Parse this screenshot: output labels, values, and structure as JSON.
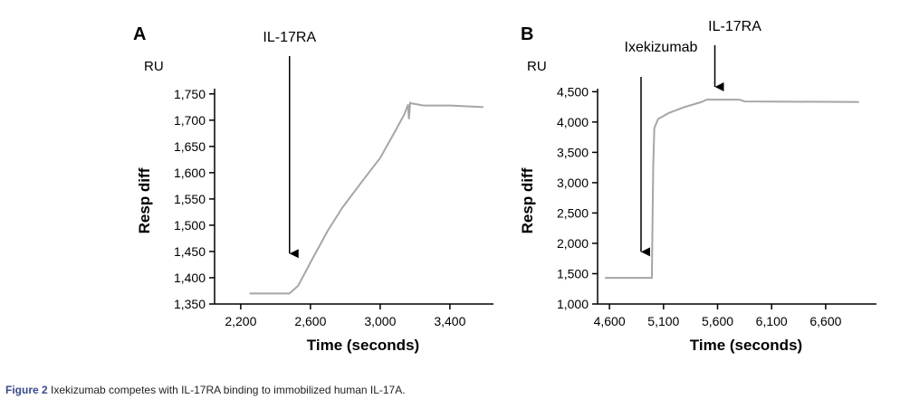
{
  "chart_data": [
    {
      "type": "line",
      "panel_label": "A",
      "y_unit": "RU",
      "ylabel": "Resp diff",
      "xlabel": "Time (seconds)",
      "x": [
        2250,
        2480,
        2530,
        2600,
        2700,
        2782,
        2900,
        3000,
        3086,
        3140,
        3160,
        3165,
        3172,
        3180,
        3250,
        3400,
        3592
      ],
      "values": [
        1370,
        1370,
        1385,
        1429,
        1490,
        1533,
        1585,
        1628,
        1679,
        1712,
        1730,
        1702,
        1733,
        1732,
        1728,
        1728,
        1725
      ],
      "color": "#a6a6a6",
      "xlim": [
        2050,
        3650
      ],
      "ylim": [
        1350,
        1760
      ],
      "xticks": [
        {
          "value": 2200,
          "label": "2,200"
        },
        {
          "value": 2600,
          "label": "2,600"
        },
        {
          "value": 3000,
          "label": "3,000"
        },
        {
          "value": 3400,
          "label": "3,400"
        }
      ],
      "yticks": [
        {
          "value": 1350,
          "label": "1,350"
        },
        {
          "value": 1400,
          "label": "1,400"
        },
        {
          "value": 1450,
          "label": "1,450"
        },
        {
          "value": 1500,
          "label": "1,500"
        },
        {
          "value": 1550,
          "label": "1,550"
        },
        {
          "value": 1600,
          "label": "1,600"
        },
        {
          "value": 1650,
          "label": "1,650"
        },
        {
          "value": 1700,
          "label": "1,700"
        },
        {
          "value": 1750,
          "label": "1,750"
        }
      ],
      "annotations": [
        {
          "text": "IL-17RA",
          "x": 2480
        }
      ]
    },
    {
      "type": "line",
      "panel_label": "B",
      "y_unit": "RU",
      "ylabel": "Resp diff",
      "xlabel": "Time (seconds)",
      "x": [
        4558,
        4992,
        5005,
        5015,
        5050,
        5150,
        5300,
        5450,
        5500,
        5800,
        5850,
        6908
      ],
      "values": [
        1430,
        1430,
        3300,
        3900,
        4050,
        4150,
        4250,
        4330,
        4370,
        4370,
        4340,
        4330
      ],
      "color": "#a6a6a6",
      "xlim": [
        4490,
        7070
      ],
      "ylim": [
        1000,
        4550
      ],
      "xticks": [
        {
          "value": 4600,
          "label": "4,600"
        },
        {
          "value": 5100,
          "label": "5,100"
        },
        {
          "value": 5600,
          "label": "5,600"
        },
        {
          "value": 6100,
          "label": "6,100"
        },
        {
          "value": 6600,
          "label": "6,600"
        }
      ],
      "yticks": [
        {
          "value": 1000,
          "label": "1,000"
        },
        {
          "value": 1500,
          "label": "1,500"
        },
        {
          "value": 2000,
          "label": "2,000"
        },
        {
          "value": 2500,
          "label": "2,500"
        },
        {
          "value": 3000,
          "label": "3,000"
        },
        {
          "value": 3500,
          "label": "3,500"
        },
        {
          "value": 4000,
          "label": "4,000"
        },
        {
          "value": 4500,
          "label": "4,500"
        }
      ],
      "annotations": [
        {
          "text": "Ixekizumab",
          "x": 4892
        },
        {
          "text": "IL-17RA",
          "x": 5575
        }
      ]
    }
  ],
  "caption": {
    "label": "Figure 2",
    "text": "Ixekizumab competes with IL-17RA binding to immobilized human IL-17A."
  }
}
